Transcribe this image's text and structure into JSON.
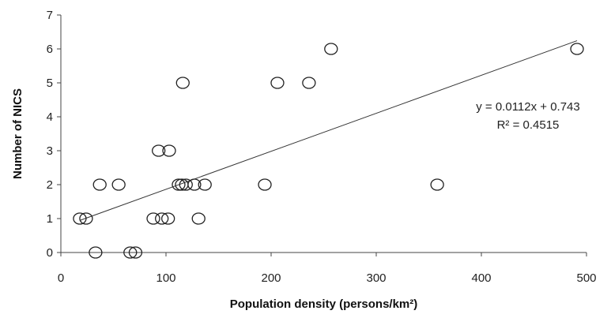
{
  "chart_data": {
    "type": "scatter",
    "xlabel": "Population density (persons/km²)",
    "ylabel": "Number of NICS",
    "xlim": [
      0,
      500
    ],
    "ylim": [
      0,
      7
    ],
    "xticks": [
      0,
      100,
      200,
      300,
      400,
      500
    ],
    "yticks": [
      0,
      1,
      2,
      3,
      4,
      5,
      6,
      7
    ],
    "grid": false,
    "marker": "open-circle",
    "points": [
      {
        "x": 18,
        "y": 1
      },
      {
        "x": 24,
        "y": 1
      },
      {
        "x": 33,
        "y": 0
      },
      {
        "x": 37,
        "y": 2
      },
      {
        "x": 55,
        "y": 2
      },
      {
        "x": 66,
        "y": 0
      },
      {
        "x": 71,
        "y": 0
      },
      {
        "x": 88,
        "y": 1
      },
      {
        "x": 93,
        "y": 3
      },
      {
        "x": 96,
        "y": 1
      },
      {
        "x": 102,
        "y": 1
      },
      {
        "x": 103,
        "y": 3
      },
      {
        "x": 112,
        "y": 2
      },
      {
        "x": 115,
        "y": 2
      },
      {
        "x": 116,
        "y": 5
      },
      {
        "x": 119,
        "y": 2
      },
      {
        "x": 127,
        "y": 2
      },
      {
        "x": 131,
        "y": 1
      },
      {
        "x": 137,
        "y": 2
      },
      {
        "x": 194,
        "y": 2
      },
      {
        "x": 206,
        "y": 5
      },
      {
        "x": 236,
        "y": 5
      },
      {
        "x": 257,
        "y": 6
      },
      {
        "x": 358,
        "y": 2
      },
      {
        "x": 491,
        "y": 6
      }
    ],
    "trendline": {
      "type": "linear",
      "slope": 0.0112,
      "intercept": 0.743,
      "x_range": [
        18,
        491
      ],
      "equation": "y = 0.0112x + 0.743",
      "r_squared": "R² = 0.4515"
    }
  }
}
